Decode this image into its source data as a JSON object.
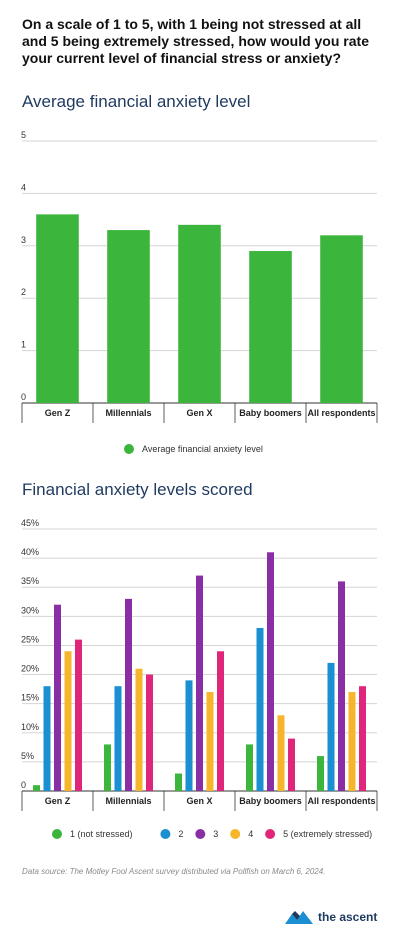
{
  "question": "On a scale of 1 to 5, with 1 being not stressed at all and 5 being extremely stressed, how would you rate your current level of financial stress or anxiety?",
  "source": "Data source: The Motley Fool Ascent survey distributed via Pollfish on March 6, 2024.",
  "logo": {
    "text": "the ascent",
    "icon": "ascent-logo-icon"
  },
  "colors": {
    "green": "#3bb53b",
    "blue": "#1a8fd1",
    "purple": "#8a2ea6",
    "orange": "#f7b52b",
    "pink": "#e0267b",
    "grid": "#d5d5d5",
    "axis": "#333333"
  },
  "chart_data": [
    {
      "type": "bar",
      "title": "Average financial anxiety level",
      "categories": [
        "Gen Z",
        "Millennials",
        "Gen X",
        "Baby boomers",
        "All respondents"
      ],
      "series": [
        {
          "name": "Average financial anxiety level",
          "values": [
            3.6,
            3.3,
            3.4,
            2.9,
            3.2
          ]
        }
      ],
      "ylim": [
        0,
        5
      ],
      "yticks": [
        "0",
        "1",
        "2",
        "3",
        "4",
        "5"
      ],
      "grid": true,
      "legend": "bottom"
    },
    {
      "type": "bar",
      "title": "Financial anxiety levels scored",
      "categories": [
        "Gen Z",
        "Millennials",
        "Gen X",
        "Baby boomers",
        "All respondents"
      ],
      "series": [
        {
          "name": "1 (not stressed)",
          "values": [
            1,
            8,
            3,
            8,
            6
          ]
        },
        {
          "name": "2",
          "values": [
            18,
            18,
            19,
            28,
            22
          ]
        },
        {
          "name": "3",
          "values": [
            32,
            33,
            37,
            41,
            36
          ]
        },
        {
          "name": "4",
          "values": [
            24,
            21,
            17,
            13,
            17
          ]
        },
        {
          "name": "5 (extremely stressed)",
          "values": [
            26,
            20,
            24,
            9,
            18
          ]
        }
      ],
      "ylim": [
        0,
        45
      ],
      "yticks": [
        "0",
        "5%",
        "10%",
        "15%",
        "20%",
        "25%",
        "30%",
        "35%",
        "40%",
        "45%"
      ],
      "grid": true,
      "legend": "bottom"
    }
  ]
}
